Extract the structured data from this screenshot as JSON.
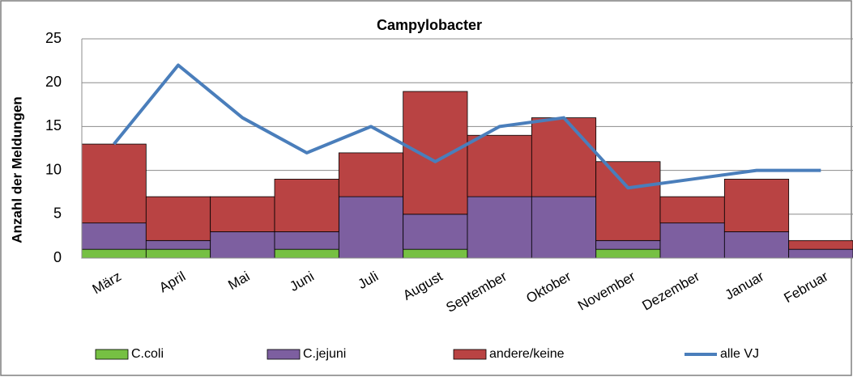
{
  "chart_data": {
    "type": "bar",
    "stacked": true,
    "title": "Campylobacter",
    "y_label": "Anzahl der Meldungen",
    "categories": [
      "März",
      "April",
      "Mai",
      "Juni",
      "Juli",
      "August",
      "September",
      "Oktober",
      "November",
      "Dezember",
      "Januar",
      "Februar"
    ],
    "series": [
      {
        "name": "C.coli",
        "color": "#76c043",
        "values": [
          1,
          1,
          0,
          1,
          0,
          1,
          0,
          0,
          1,
          0,
          0,
          0
        ]
      },
      {
        "name": "C.jejuni",
        "color": "#7d5fa0",
        "values": [
          3,
          1,
          3,
          2,
          7,
          4,
          7,
          7,
          1,
          4,
          3,
          1
        ]
      },
      {
        "name": "andere/keine",
        "color": "#b94343",
        "values": [
          9,
          5,
          4,
          6,
          5,
          14,
          7,
          9,
          9,
          3,
          6,
          1
        ]
      },
      {
        "name": "alle VJ",
        "color": "#4a7ebb",
        "type": "line",
        "values": [
          13,
          22,
          16,
          12,
          15,
          11,
          15,
          16,
          8,
          9,
          10,
          10
        ]
      }
    ],
    "ylim": [
      0,
      25
    ],
    "yticks": [
      0,
      5,
      10,
      15,
      20,
      25
    ],
    "grid": true,
    "legend": "bottom"
  }
}
